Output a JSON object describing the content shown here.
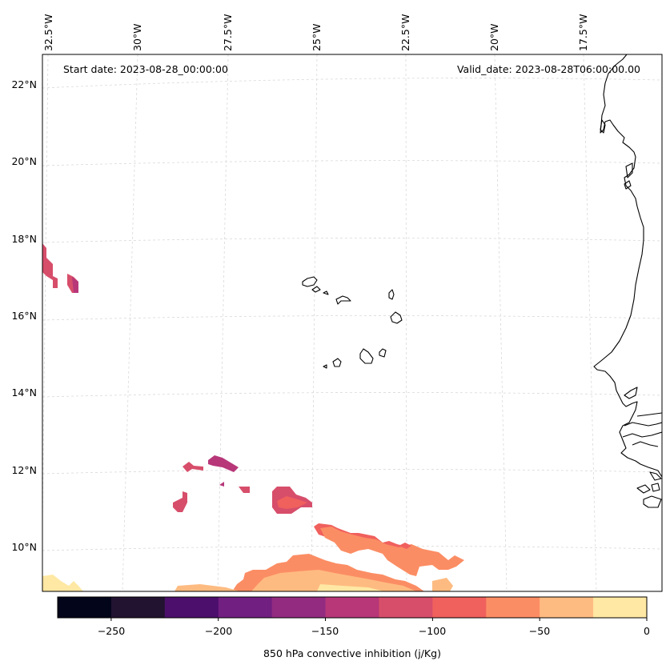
{
  "annotations": {
    "start_date": "Start date: 2023-08-28_00:00:00",
    "valid_date": "Valid_date: 2023-08-28T06:00:00.00"
  },
  "lat_labels": [
    "22°N",
    "20°N",
    "18°N",
    "16°N",
    "14°N",
    "12°N",
    "10°N"
  ],
  "lon_labels": [
    "32.5°W",
    "30°W",
    "27.5°W",
    "25°W",
    "22.5°W",
    "20°W",
    "17.5°W"
  ],
  "colorbar": {
    "label": "850 hPa convective inhibition (j/Kg)",
    "ticks": [
      "−250",
      "−200",
      "−150",
      "−100",
      "−50",
      "0"
    ],
    "colors": [
      "#03051a",
      "#221331",
      "#4c0f6b",
      "#711f81",
      "#932b80",
      "#b73779",
      "#d74e6b",
      "#f0605d",
      "#fb8d64",
      "#febb81",
      "#fee8a3"
    ]
  },
  "fills": {
    "cin_-125_-100": "#d74e6b",
    "cin_-150_-125": "#b73779",
    "cin_-100_-75": "#f0605d",
    "cin_-75_-50": "#fb8d64",
    "cin_-50_-25": "#febb81",
    "cin_-25_0": "#fee8a3"
  },
  "grid_color": "#d9d9d9",
  "coast_color": "#000000"
}
